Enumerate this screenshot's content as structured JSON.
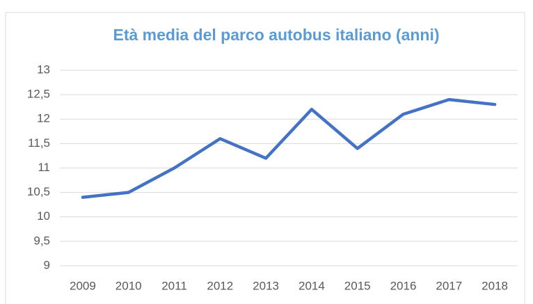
{
  "chart_data": {
    "type": "line",
    "title": "Età media del parco autobus italiano (anni)",
    "categories": [
      "2009",
      "2010",
      "2011",
      "2012",
      "2013",
      "2014",
      "2015",
      "2016",
      "2017",
      "2018"
    ],
    "series": [
      {
        "name": "Età media",
        "color": "#4472c4",
        "values": [
          10.4,
          10.5,
          11.0,
          11.6,
          11.2,
          12.2,
          11.4,
          12.1,
          12.4,
          12.3
        ]
      }
    ],
    "ylim": [
      9,
      13
    ],
    "yticks": [
      9,
      {
        "value": 9.5,
        "label": "9,5"
      },
      10,
      {
        "value": 10.5,
        "label": "10,5"
      },
      11,
      {
        "value": 11.5,
        "label": "11,5"
      },
      12,
      {
        "value": 12.5,
        "label": "12,5"
      },
      13
    ],
    "grid": true
  }
}
